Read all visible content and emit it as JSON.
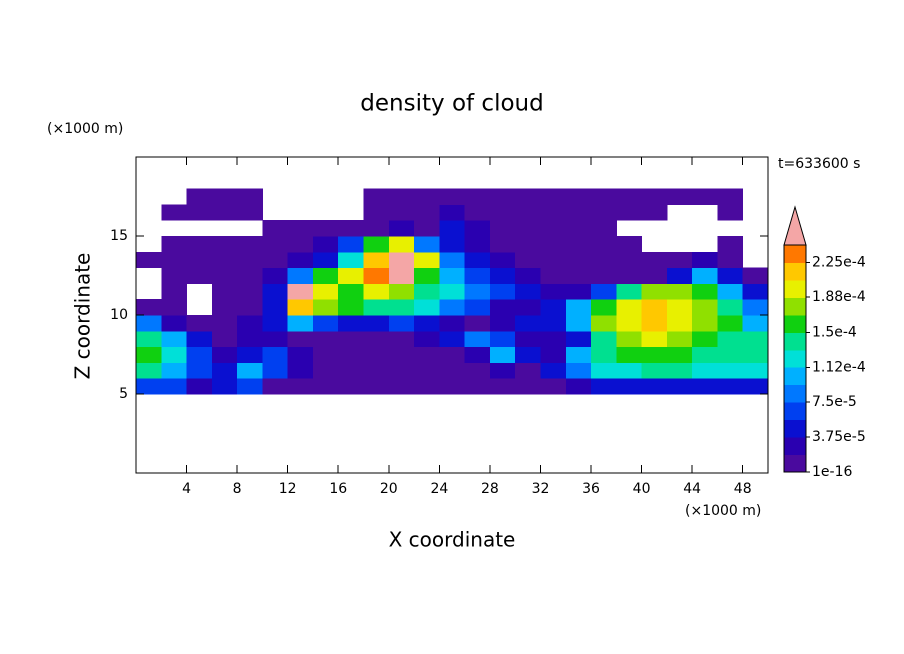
{
  "chart_data": {
    "type": "contour",
    "title": "density of cloud",
    "xlabel": "X coordinate",
    "ylabel": "Z coordinate",
    "xunit": "(×1000 m)",
    "yunit": "(×1000 m)",
    "annotation": "t=633600 s",
    "xlim": [
      0,
      50
    ],
    "ylim": [
      0,
      20
    ],
    "xticks": [
      4,
      8,
      12,
      16,
      20,
      24,
      28,
      32,
      36,
      40,
      44,
      48
    ],
    "yticks": [
      5,
      10,
      15
    ],
    "x": [
      1,
      3,
      5,
      7,
      9,
      11,
      13,
      15,
      17,
      19,
      21,
      23,
      25,
      27,
      29,
      31,
      33,
      35,
      37,
      39,
      41,
      43,
      45,
      47,
      49
    ],
    "y": [
      5.5,
      6.5,
      7.5,
      8.5,
      9.5,
      10.5,
      11.5,
      12.5,
      13.5,
      14.5,
      15.5,
      16.5,
      17.5
    ],
    "values": [
      [
        6.5e-05,
        6.5e-05,
        2.5e-05,
        4.5e-05,
        6.5e-05,
        1e-05,
        1e-05,
        1e-05,
        1e-05,
        1e-05,
        1e-05,
        1e-05,
        1e-05,
        1e-05,
        1e-05,
        1e-05,
        1e-05,
        2.5e-05,
        4.5e-05,
        4.5e-05,
        4.5e-05,
        4.5e-05,
        4.5e-05,
        4.5e-05,
        4.5e-05
      ],
      [
        0.000145,
        0.000105,
        6.5e-05,
        4.5e-05,
        0.000105,
        6.5e-05,
        2.5e-05,
        1e-05,
        1e-05,
        1e-05,
        1e-05,
        1e-05,
        1e-05,
        1e-05,
        2.5e-05,
        1e-05,
        4.5e-05,
        8.5e-05,
        0.000125,
        0.000125,
        0.000145,
        0.000145,
        0.000125,
        0.000125,
        0.000125
      ],
      [
        0.00016,
        0.000125,
        6.5e-05,
        2.5e-05,
        4.5e-05,
        6.5e-05,
        2.5e-05,
        1e-05,
        1e-05,
        1e-05,
        1e-05,
        1e-05,
        1e-05,
        2.5e-05,
        0.000105,
        4.5e-05,
        2.5e-05,
        0.000105,
        0.000145,
        0.00016,
        0.00016,
        0.00016,
        0.000145,
        0.000145,
        0.000145
      ],
      [
        0.000145,
        0.000105,
        4.5e-05,
        1e-05,
        2.5e-05,
        2.5e-05,
        1e-05,
        1e-05,
        1e-05,
        1e-05,
        1e-05,
        2.5e-05,
        4.5e-05,
        8.5e-05,
        6.5e-05,
        2.5e-05,
        2.5e-05,
        4.5e-05,
        0.000145,
        0.00018,
        0.0002,
        0.00018,
        0.00016,
        0.000145,
        0.000145
      ],
      [
        8.5e-05,
        2.5e-05,
        1e-05,
        1e-05,
        2.5e-05,
        4.5e-05,
        0.000105,
        6.5e-05,
        4.5e-05,
        4.5e-05,
        6.5e-05,
        4.5e-05,
        2.5e-05,
        1e-05,
        2.5e-05,
        4.5e-05,
        4.5e-05,
        0.000105,
        0.00018,
        0.0002,
        0.00022,
        0.0002,
        0.00018,
        0.00016,
        0.000105
      ],
      [
        1e-05,
        1e-05,
        null,
        1e-05,
        1e-05,
        4.5e-05,
        0.00022,
        0.00018,
        0.00016,
        0.000145,
        0.000145,
        0.000125,
        8.5e-05,
        6.5e-05,
        2.5e-05,
        2.5e-05,
        4.5e-05,
        0.000105,
        0.00016,
        0.0002,
        0.00022,
        0.0002,
        0.00018,
        0.000145,
        8.5e-05
      ],
      [
        null,
        1e-05,
        null,
        1e-05,
        1e-05,
        4.5e-05,
        0.00026,
        0.0002,
        0.00016,
        0.0002,
        0.00018,
        0.000145,
        0.000125,
        8.5e-05,
        6.5e-05,
        4.5e-05,
        2.5e-05,
        2.5e-05,
        6.5e-05,
        0.000145,
        0.00018,
        0.00018,
        0.00016,
        0.000105,
        4.5e-05
      ],
      [
        null,
        1e-05,
        1e-05,
        1e-05,
        1e-05,
        2.5e-05,
        8.5e-05,
        0.00016,
        0.0002,
        0.000235,
        0.00026,
        0.00016,
        0.000105,
        6.5e-05,
        4.5e-05,
        2.5e-05,
        1e-05,
        1e-05,
        1e-05,
        1e-05,
        1e-05,
        4.5e-05,
        0.000105,
        4.5e-05,
        1e-05
      ],
      [
        1e-05,
        1e-05,
        1e-05,
        1e-05,
        1e-05,
        1e-05,
        2.5e-05,
        4.5e-05,
        0.000125,
        0.00022,
        0.00026,
        0.0002,
        8.5e-05,
        4.5e-05,
        2.5e-05,
        1e-05,
        1e-05,
        1e-05,
        1e-05,
        1e-05,
        1e-05,
        1e-05,
        2.5e-05,
        1e-05,
        null
      ],
      [
        null,
        1e-05,
        1e-05,
        1e-05,
        1e-05,
        1e-05,
        1e-05,
        2.5e-05,
        6.5e-05,
        0.00016,
        0.0002,
        8.5e-05,
        4.5e-05,
        2.5e-05,
        1e-05,
        1e-05,
        1e-05,
        1e-05,
        1e-05,
        1e-05,
        null,
        null,
        null,
        1e-05,
        null
      ],
      [
        null,
        null,
        null,
        null,
        null,
        1e-05,
        1e-05,
        1e-05,
        1e-05,
        1e-05,
        2.5e-05,
        1e-05,
        4.5e-05,
        2.5e-05,
        1e-05,
        1e-05,
        1e-05,
        1e-05,
        1e-05,
        null,
        null,
        null,
        null,
        null,
        null
      ],
      [
        null,
        1e-05,
        1e-05,
        1e-05,
        1e-05,
        null,
        null,
        null,
        null,
        1e-05,
        1e-05,
        1e-05,
        2.5e-05,
        1e-05,
        1e-05,
        1e-05,
        1e-05,
        1e-05,
        1e-05,
        1e-05,
        1e-05,
        null,
        null,
        1e-05,
        null
      ],
      [
        null,
        null,
        1e-05,
        1e-05,
        1e-05,
        null,
        null,
        null,
        null,
        1e-05,
        1e-05,
        1e-05,
        1e-05,
        1e-05,
        1e-05,
        1e-05,
        1e-05,
        1e-05,
        1e-05,
        1e-05,
        1e-05,
        1e-05,
        1e-05,
        1e-05,
        null
      ]
    ],
    "levels": [
      1e-16,
      1.875e-05,
      3.75e-05,
      5.625e-05,
      7.5e-05,
      9.375e-05,
      0.0001125,
      0.00013125,
      0.00015,
      0.00016875,
      0.0001875,
      0.00020625,
      0.000225,
      0.00024375
    ],
    "colors": [
      "#4a0a9e",
      "#2a00b0",
      "#0a10d0",
      "#0040f0",
      "#0078ff",
      "#00b0ff",
      "#00e0d8",
      "#00e090",
      "#10d010",
      "#90e000",
      "#e8f000",
      "#ffc800",
      "#ff7800",
      "#f00000"
    ],
    "over_color": "#f4a6a6",
    "cticks": [
      1e-16,
      {
        "value": 3.75e-05,
        "label": "3.75e-5"
      },
      {
        "value": 7.5e-05,
        "label": "7.5e-5"
      },
      {
        "value": 0.000112,
        "label": "1.12e-4"
      },
      {
        "value": 0.00015,
        "label": "1.5e-4"
      },
      {
        "value": 0.000188,
        "label": "1.88e-4"
      },
      {
        "value": 0.000225,
        "label": "2.25e-4"
      }
    ]
  }
}
